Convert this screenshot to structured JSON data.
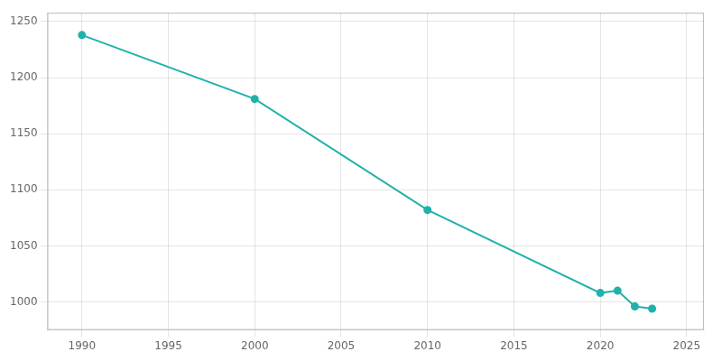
{
  "chart_data": {
    "type": "line",
    "x": [
      1990,
      2000,
      2010,
      2020,
      2021,
      2022,
      2023
    ],
    "values": [
      1238,
      1181,
      1082,
      1008,
      1010,
      996,
      994
    ],
    "color": "#20b2aa",
    "marker": "circle",
    "xlim": [
      1988,
      2026
    ],
    "xticks": [
      1990,
      1995,
      2000,
      2005,
      2010,
      2015,
      2020,
      2025
    ],
    "ylim": [
      975,
      1258
    ],
    "yticks": [
      1000,
      1050,
      1100,
      1150,
      1200,
      1250
    ],
    "grid": true
  }
}
